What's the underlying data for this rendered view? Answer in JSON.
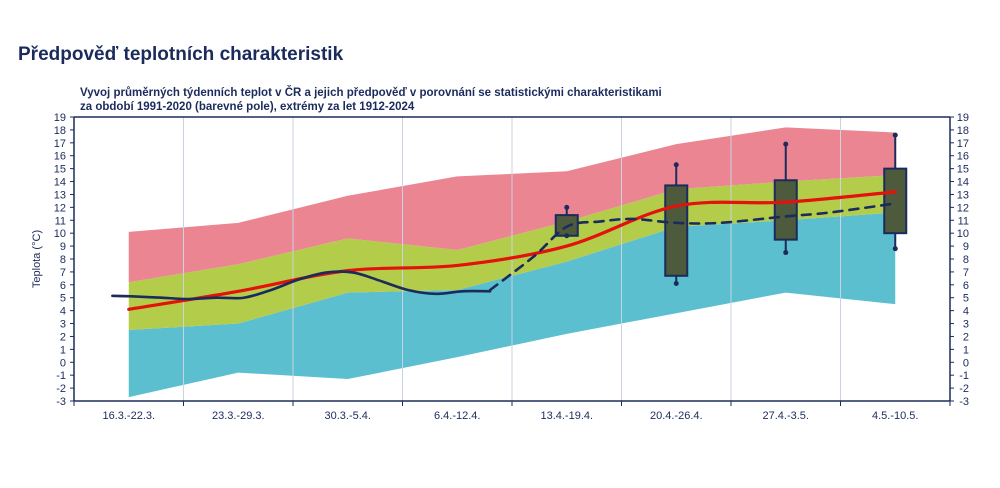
{
  "page": {
    "title": "Předpověď teplotních charakteristik"
  },
  "chart_data": {
    "type": "area",
    "title_lines": [
      "Vyvoj průměrných týdenních teplot v ČR a jejich předpověď v porovnání se statistickými charakteristikami",
      "za období 1991-2020 (barevné pole), extrémy za let 1912-2024"
    ],
    "ylabel": "Teplota (°C)",
    "ylim": [
      -3,
      19
    ],
    "yticks": [
      -3,
      -2,
      -1,
      0,
      1,
      2,
      3,
      4,
      5,
      6,
      7,
      8,
      9,
      10,
      11,
      12,
      13,
      14,
      15,
      16,
      17,
      18,
      19
    ],
    "categories": [
      "16.3.-22.3.",
      "23.3.-29.3.",
      "30.3.-5.4.",
      "6.4.-12.4.",
      "13.4.-19.4.",
      "20.4.-26.4.",
      "27.4.-3.5.",
      "4.5.-10.5."
    ],
    "bands": {
      "blue": {
        "color": "#5bbfcf",
        "low": [
          -2.7,
          -0.8,
          -1.3,
          0.4,
          2.2,
          3.8,
          5.4,
          4.5
        ],
        "high": [
          2.5,
          3.0,
          5.4,
          5.6,
          7.8,
          10.5,
          11.0,
          11.6
        ]
      },
      "green": {
        "color": "#b3cc4a",
        "low": [
          2.5,
          3.0,
          5.4,
          5.6,
          7.8,
          10.5,
          11.0,
          11.6
        ],
        "high": [
          6.2,
          7.6,
          9.6,
          8.7,
          10.9,
          13.4,
          14.0,
          14.5
        ]
      },
      "red": {
        "color": "#ec8592",
        "low": [
          6.2,
          7.6,
          9.6,
          8.7,
          10.9,
          13.4,
          14.0,
          14.5
        ],
        "high": [
          10.1,
          10.8,
          12.9,
          14.4,
          14.8,
          16.9,
          18.2,
          17.8
        ]
      }
    },
    "series": [
      {
        "id": "normal",
        "color": "#e3120b",
        "values": [
          4.1,
          5.5,
          7.1,
          7.5,
          9.0,
          12.1,
          12.4,
          13.2
        ]
      },
      {
        "id": "measured",
        "color": "#1b2b5c",
        "x": [
          -0.15,
          0.05,
          0.3,
          0.55,
          0.8,
          1.05,
          1.3,
          1.55,
          1.8,
          2.05,
          2.3,
          2.55,
          2.8,
          3.05,
          3.3
        ],
        "values": [
          5.15,
          5.1,
          5.0,
          4.9,
          5.0,
          5.0,
          5.6,
          6.4,
          6.95,
          6.95,
          6.3,
          5.6,
          5.3,
          5.5,
          5.5
        ]
      },
      {
        "id": "forecast",
        "color": "#1b2b5c",
        "dash": true,
        "x": [
          3.3,
          3.7,
          4.0,
          4.3,
          4.6,
          5.0,
          5.4,
          6.0,
          6.4,
          7.0
        ],
        "values": [
          5.6,
          8.2,
          10.5,
          10.9,
          11.1,
          10.8,
          10.8,
          11.3,
          11.6,
          12.3
        ]
      }
    ],
    "boxes": [
      {
        "x": 4,
        "min": 9.8,
        "q1": 9.8,
        "q3": 11.4,
        "max": 12.0
      },
      {
        "x": 5,
        "min": 6.1,
        "q1": 6.7,
        "q3": 13.7,
        "max": 15.3
      },
      {
        "x": 6,
        "min": 8.5,
        "q1": 9.5,
        "q3": 14.1,
        "max": 16.9
      },
      {
        "x": 7,
        "min": 8.8,
        "q1": 10.0,
        "q3": 15.0,
        "max": 17.6
      }
    ],
    "box_color": "#4d5a3c",
    "box_edge": "#1b2b5c",
    "axis_color": "#1b2b5c",
    "grid": "vertical-lines"
  }
}
